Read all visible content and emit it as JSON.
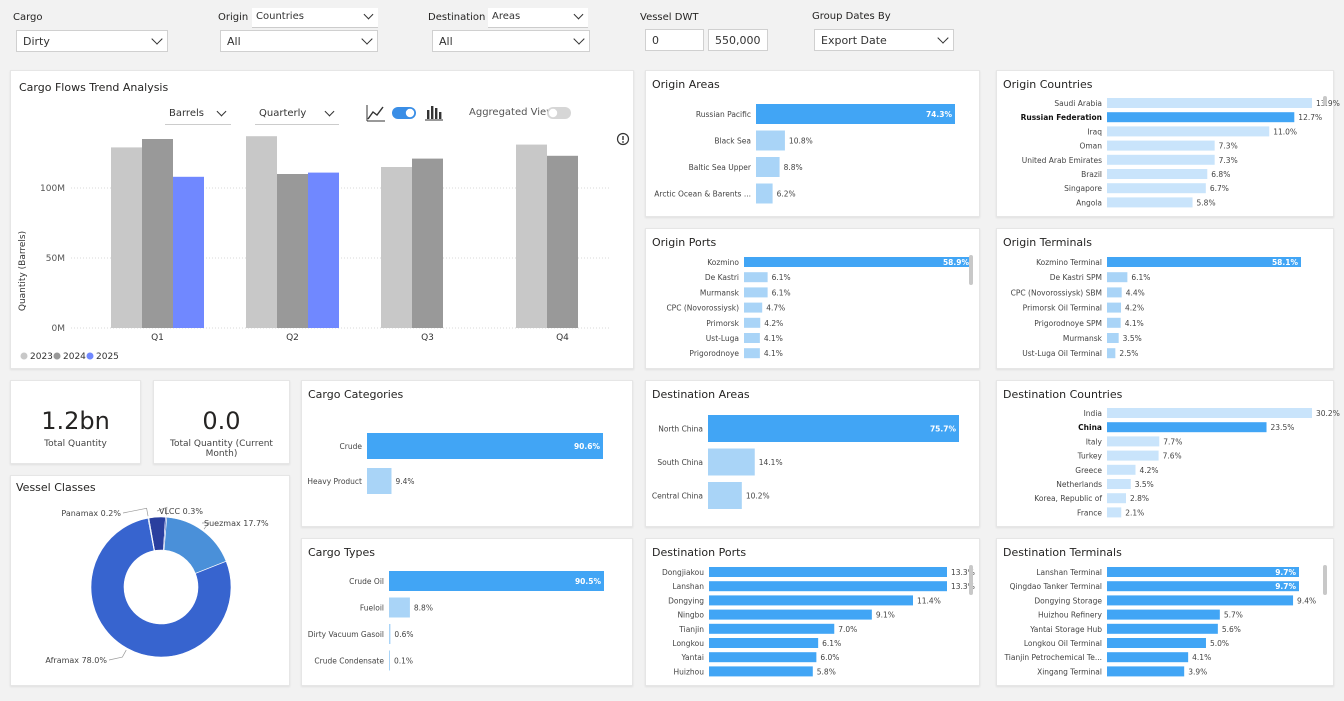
{
  "filters": {
    "cargo": {
      "label": "Cargo",
      "value": "Dirty"
    },
    "origin": {
      "label": "Origin",
      "mode": "Countries",
      "value": "All"
    },
    "destination": {
      "label": "Destination",
      "mode": "Areas",
      "value": "All"
    },
    "vessel_dwt": {
      "label": "Vessel DWT",
      "min": "0",
      "max": "550,000"
    },
    "group_dates": {
      "label": "Group Dates By",
      "value": "Export Date"
    }
  },
  "trend": {
    "title": "Cargo Flows Trend Analysis",
    "unit_select": "Barrels",
    "period_select": "Quarterly",
    "aggregated_label": "Aggregated View",
    "colors": {
      "2023": "#c8c8c8",
      "2024": "#999999",
      "2025": "#7088ff"
    }
  },
  "chart_data": [
    {
      "type": "bar",
      "title": "Cargo Flows Trend Analysis",
      "ylabel": "Quantity (Barrels)",
      "categories": [
        "Q1",
        "Q2",
        "Q3",
        "Q4"
      ],
      "yticks": [
        "0M",
        "50M",
        "100M"
      ],
      "ylim": [
        0,
        150
      ],
      "series": [
        {
          "name": "2023",
          "values": [
            129,
            137,
            115,
            131
          ]
        },
        {
          "name": "2024",
          "values": [
            135,
            110,
            121,
            123
          ]
        },
        {
          "name": "2025",
          "values": [
            108,
            111,
            null,
            null
          ]
        }
      ]
    },
    {
      "type": "pie",
      "title": "Vessel Classes",
      "slices": [
        {
          "label": "Aframax 78.0%",
          "value": 78.0,
          "color": "#3764cf"
        },
        {
          "label": "Suezmax 17.7%",
          "value": 17.7,
          "color": "#4a90d9"
        },
        {
          "label": "Panamax 0.2%",
          "value": 0.2,
          "color": "#6aa8e8"
        },
        {
          "label": "VLCC 0.3%",
          "value": 0.3,
          "color": "#2746b0"
        },
        {
          "label": "",
          "value": 3.8,
          "color": "#2a3f9e"
        }
      ]
    }
  ],
  "kpis": [
    {
      "value": "1.2bn",
      "label": "Total Quantity"
    },
    {
      "value": "0.0",
      "label": "Total Quantity (Current Month)"
    }
  ],
  "vessel_classes": {
    "title": "Vessel Classes"
  },
  "bar_panels": {
    "origin_areas": {
      "title": "Origin Areas",
      "max": 74.3,
      "rows": [
        {
          "label": "Russian Pacific",
          "value": 74.3,
          "text": "74.3%"
        },
        {
          "label": "Black Sea",
          "value": 10.8,
          "text": "10.8%"
        },
        {
          "label": "Baltic Sea Upper",
          "value": 8.8,
          "text": "8.8%"
        },
        {
          "label": "Arctic Ocean & Barents ...",
          "value": 6.2,
          "text": "6.2%"
        }
      ]
    },
    "origin_countries": {
      "title": "Origin Countries",
      "max": 13.9,
      "rows": [
        {
          "label": "Saudi Arabia",
          "value": 13.9,
          "text": "13.9%"
        },
        {
          "label": "Russian Federation",
          "value": 12.7,
          "text": "12.7%",
          "selected": true
        },
        {
          "label": "Iraq",
          "value": 11.0,
          "text": "11.0%"
        },
        {
          "label": "Oman",
          "value": 7.3,
          "text": "7.3%"
        },
        {
          "label": "United Arab Emirates",
          "value": 7.3,
          "text": "7.3%"
        },
        {
          "label": "Brazil",
          "value": 6.8,
          "text": "6.8%"
        },
        {
          "label": "Singapore",
          "value": 6.7,
          "text": "6.7%"
        },
        {
          "label": "Angola",
          "value": 5.8,
          "text": "5.8%"
        }
      ]
    },
    "origin_ports": {
      "title": "Origin Ports",
      "max": 58.9,
      "rows": [
        {
          "label": "Kozmino",
          "value": 58.9,
          "text": "58.9%"
        },
        {
          "label": "De Kastri",
          "value": 6.1,
          "text": "6.1%"
        },
        {
          "label": "Murmansk",
          "value": 6.1,
          "text": "6.1%"
        },
        {
          "label": "CPC (Novorossiysk)",
          "value": 4.7,
          "text": "4.7%"
        },
        {
          "label": "Primorsk",
          "value": 4.2,
          "text": "4.2%"
        },
        {
          "label": "Ust-Luga",
          "value": 4.1,
          "text": "4.1%"
        },
        {
          "label": "Prigorodnoye",
          "value": 4.1,
          "text": "4.1%"
        }
      ]
    },
    "origin_terminals": {
      "title": "Origin Terminals",
      "max": 58.1,
      "rows": [
        {
          "label": "Kozmino Terminal",
          "value": 58.1,
          "text": "58.1%"
        },
        {
          "label": "De Kastri SPM",
          "value": 6.1,
          "text": "6.1%"
        },
        {
          "label": "CPC (Novorossiysk) SBM",
          "value": 4.4,
          "text": "4.4%"
        },
        {
          "label": "Primorsk Oil Terminal",
          "value": 4.2,
          "text": "4.2%"
        },
        {
          "label": "Prigorodnoye SPM",
          "value": 4.1,
          "text": "4.1%"
        },
        {
          "label": "Murmansk",
          "value": 3.5,
          "text": "3.5%"
        },
        {
          "label": "Ust-Luga Oil Terminal",
          "value": 2.5,
          "text": "2.5%"
        }
      ]
    },
    "cargo_categories": {
      "title": "Cargo Categories",
      "max": 90.6,
      "rows": [
        {
          "label": "Crude",
          "value": 90.6,
          "text": "90.6%"
        },
        {
          "label": "Heavy Product",
          "value": 9.4,
          "text": "9.4%"
        }
      ]
    },
    "cargo_types": {
      "title": "Cargo Types",
      "max": 90.5,
      "rows": [
        {
          "label": "Crude Oil",
          "value": 90.5,
          "text": "90.5%"
        },
        {
          "label": "Fueloil",
          "value": 8.8,
          "text": "8.8%"
        },
        {
          "label": "Dirty Vacuum Gasoil",
          "value": 0.6,
          "text": "0.6%"
        },
        {
          "label": "Crude Condensate",
          "value": 0.1,
          "text": "0.1%"
        }
      ]
    },
    "destination_areas": {
      "title": "Destination Areas",
      "max": 75.7,
      "rows": [
        {
          "label": "North China",
          "value": 75.7,
          "text": "75.7%"
        },
        {
          "label": "South China",
          "value": 14.1,
          "text": "14.1%"
        },
        {
          "label": "Central China",
          "value": 10.2,
          "text": "10.2%"
        }
      ]
    },
    "destination_countries": {
      "title": "Destination Countries",
      "max": 30.2,
      "rows": [
        {
          "label": "India",
          "value": 30.2,
          "text": "30.2%"
        },
        {
          "label": "China",
          "value": 23.5,
          "text": "23.5%",
          "selected": true
        },
        {
          "label": "Italy",
          "value": 7.7,
          "text": "7.7%"
        },
        {
          "label": "Turkey",
          "value": 7.6,
          "text": "7.6%"
        },
        {
          "label": "Greece",
          "value": 4.2,
          "text": "4.2%"
        },
        {
          "label": "Netherlands",
          "value": 3.5,
          "text": "3.5%"
        },
        {
          "label": "Korea, Republic of",
          "value": 2.8,
          "text": "2.8%"
        },
        {
          "label": "France",
          "value": 2.1,
          "text": "2.1%"
        }
      ]
    },
    "destination_ports": {
      "title": "Destination Ports",
      "max": 13.3,
      "rows": [
        {
          "label": "Dongjiakou",
          "value": 13.3,
          "text": "13.3%"
        },
        {
          "label": "Lanshan",
          "value": 13.3,
          "text": "13.3%"
        },
        {
          "label": "Dongying",
          "value": 11.4,
          "text": "11.4%"
        },
        {
          "label": "Ningbo",
          "value": 9.1,
          "text": "9.1%"
        },
        {
          "label": "Tianjin",
          "value": 7.0,
          "text": "7.0%"
        },
        {
          "label": "Longkou",
          "value": 6.1,
          "text": "6.1%"
        },
        {
          "label": "Yantai",
          "value": 6.0,
          "text": "6.0%"
        },
        {
          "label": "Huizhou",
          "value": 5.8,
          "text": "5.8%"
        }
      ]
    },
    "destination_terminals": {
      "title": "Destination Terminals",
      "max": 9.7,
      "rows": [
        {
          "label": "Lanshan Terminal",
          "value": 9.7,
          "text": "9.7%"
        },
        {
          "label": "Qingdao Tanker Terminal",
          "value": 9.7,
          "text": "9.7%"
        },
        {
          "label": "Dongying Storage",
          "value": 9.4,
          "text": "9.4%"
        },
        {
          "label": "Huizhou Refinery",
          "value": 5.7,
          "text": "5.7%"
        },
        {
          "label": "Yantai Storage Hub",
          "value": 5.6,
          "text": "5.6%"
        },
        {
          "label": "Longkou Oil Terminal",
          "value": 5.0,
          "text": "5.0%"
        },
        {
          "label": "Tianjin Petrochemical Te...",
          "value": 4.1,
          "text": "4.1%"
        },
        {
          "label": "Xingang Terminal",
          "value": 3.9,
          "text": "3.9%"
        }
      ]
    }
  },
  "colors": {
    "bar_dark": "#41a5f5",
    "bar_light": "#a9d4f7",
    "bar_pale": "#c9e4fb",
    "selected": "#41a5f5"
  }
}
